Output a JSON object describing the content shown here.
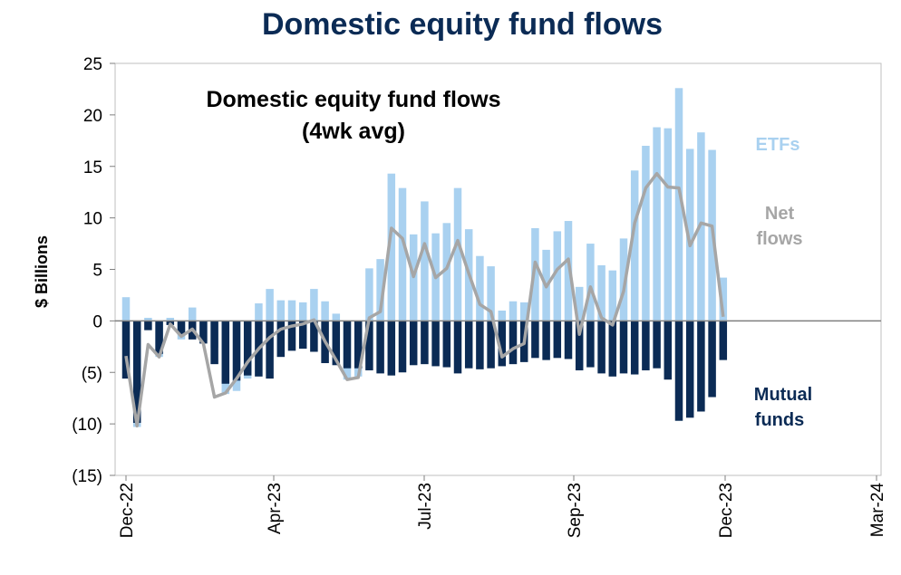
{
  "chart_data": {
    "type": "bar",
    "title": "Domestic equity fund flows",
    "inner_title_lines": [
      "Domestic equity fund flows",
      "(4wk avg)"
    ],
    "ylabel": "$ Billions",
    "ylim": [
      -15,
      25
    ],
    "y_ticks": [
      {
        "value": 25,
        "label": "25"
      },
      {
        "value": 20,
        "label": "20"
      },
      {
        "value": 15,
        "label": "15"
      },
      {
        "value": 10,
        "label": "10"
      },
      {
        "value": 5,
        "label": "5"
      },
      {
        "value": 0,
        "label": "0"
      },
      {
        "value": -5,
        "label": "(5)"
      },
      {
        "value": -10,
        "label": "(10)"
      },
      {
        "value": -15,
        "label": "(15)"
      }
    ],
    "x_ticks": [
      "Dec-22",
      "Apr-23",
      "Jul-23",
      "Sep-23",
      "Dec-23",
      "Mar-24"
    ],
    "series": [
      {
        "name": "ETFs",
        "label_lines": [
          "ETFs"
        ],
        "color": "#a9d1f0",
        "values": [
          2.3,
          -10.3,
          0.3,
          -3.5,
          0.3,
          -1.8,
          1.3,
          -2.0,
          -2.6,
          -7.1,
          -6.8,
          -5.6,
          1.7,
          3.1,
          2.0,
          2.0,
          1.8,
          3.1,
          1.9,
          0.7,
          -5.7,
          -5.4,
          5.1,
          6.0,
          14.3,
          12.9,
          8.4,
          11.6,
          8.5,
          9.5,
          12.9,
          8.9,
          6.3,
          5.3,
          1.0,
          1.9,
          1.8,
          9.0,
          6.9,
          8.7,
          9.7,
          3.3,
          7.5,
          5.4,
          4.9,
          8.0,
          14.6,
          17.0,
          18.8,
          18.7,
          22.6,
          16.7,
          18.3,
          16.6,
          4.2
        ]
      },
      {
        "name": "Mutual funds",
        "label_lines": [
          "Mutual",
          "funds"
        ],
        "color": "#0b2b55",
        "values": [
          -5.6,
          -9.9,
          -0.9,
          -3.2,
          -0.4,
          -1.3,
          -1.8,
          -2.2,
          -4.2,
          -6.1,
          -5.8,
          -5.3,
          -5.4,
          -5.6,
          -3.5,
          -2.9,
          -2.7,
          -3.0,
          -4.1,
          -4.3,
          -4.6,
          -4.6,
          -4.8,
          -5.1,
          -5.3,
          -5.0,
          -4.3,
          -4.2,
          -4.4,
          -4.5,
          -5.1,
          -4.6,
          -4.7,
          -4.6,
          -4.4,
          -4.2,
          -4.0,
          -3.6,
          -3.8,
          -3.6,
          -3.7,
          -4.8,
          -4.5,
          -5.1,
          -5.4,
          -5.1,
          -5.2,
          -4.8,
          -4.6,
          -5.7,
          -9.7,
          -9.4,
          -8.8,
          -7.4,
          -3.8
        ]
      },
      {
        "name": "Net flows",
        "label_lines": [
          "Net",
          "flows"
        ],
        "color": "#a6a6a6",
        "type": "line",
        "values": [
          -3.4,
          -10.2,
          -2.3,
          -3.5,
          -0.3,
          -1.5,
          -0.8,
          -2.2,
          -7.4,
          -7.0,
          -5.6,
          -4.0,
          -2.7,
          -1.6,
          -0.8,
          -0.5,
          -0.3,
          0.1,
          -2.0,
          -3.8,
          -5.7,
          -5.5,
          0.3,
          0.9,
          9.0,
          8.0,
          4.3,
          7.5,
          4.2,
          5.1,
          7.8,
          4.6,
          1.6,
          0.9,
          -3.5,
          -2.7,
          -2.2,
          5.7,
          3.3,
          5.0,
          6.0,
          -1.3,
          3.3,
          0.3,
          -0.4,
          2.9,
          9.5,
          12.9,
          14.3,
          13.0,
          12.9,
          7.3,
          9.5,
          9.2,
          0.4
        ]
      }
    ]
  }
}
